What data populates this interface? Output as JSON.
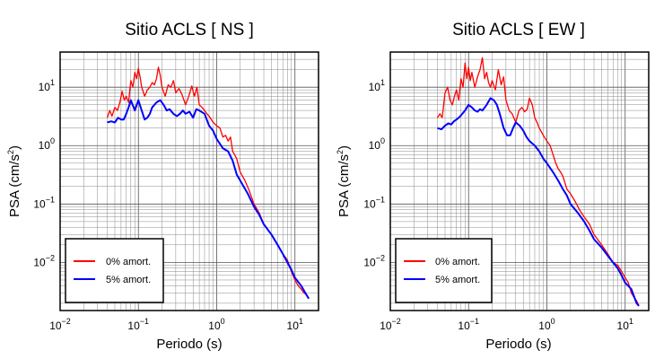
{
  "chart_data": [
    {
      "type": "line",
      "title": "Sitio ACLS [ NS ]",
      "xlabel": "Periodo (s)",
      "ylabel_main": "PSA (cm/s",
      "ylabel_sup": "2",
      "ylabel_tail": ")",
      "xscale": "log",
      "yscale": "log",
      "xlim": [
        0.01,
        20
      ],
      "ylim": [
        0.0015,
        40
      ],
      "grid": true,
      "legend_position": "bottom-left",
      "x_ticks": [
        {
          "base": "10",
          "exp": "−2"
        },
        {
          "base": "10",
          "exp": "−1"
        },
        {
          "base": "10",
          "exp": "0"
        },
        {
          "base": "10",
          "exp": "1"
        }
      ],
      "y_ticks": [
        {
          "base": "10",
          "exp": "−2"
        },
        {
          "base": "10",
          "exp": "−1"
        },
        {
          "base": "10",
          "exp": "0"
        },
        {
          "base": "10",
          "exp": "1"
        }
      ],
      "series": [
        {
          "name": "0% amort.",
          "color": "#ff0000",
          "x": [
            0.04,
            0.043,
            0.046,
            0.05,
            0.054,
            0.058,
            0.062,
            0.066,
            0.07,
            0.075,
            0.08,
            0.085,
            0.09,
            0.095,
            0.1,
            0.105,
            0.11,
            0.12,
            0.13,
            0.14,
            0.15,
            0.16,
            0.17,
            0.18,
            0.19,
            0.2,
            0.22,
            0.24,
            0.26,
            0.28,
            0.3,
            0.33,
            0.36,
            0.4,
            0.44,
            0.48,
            0.52,
            0.56,
            0.6,
            0.65,
            0.7,
            0.75,
            0.8,
            0.9,
            1.0,
            1.1,
            1.2,
            1.3,
            1.4,
            1.5,
            1.6,
            1.8,
            2.0,
            2.3,
            2.6,
            3.0,
            3.5,
            4.0,
            5.0,
            6.0,
            7.0,
            8.0,
            9.0,
            10.0,
            11.0,
            12.0,
            13.0,
            14.0,
            15.0
          ],
          "y": [
            3.0,
            4.0,
            3.2,
            4.5,
            4.0,
            5.5,
            8.5,
            6.0,
            7.0,
            5.5,
            13.0,
            10.0,
            18.0,
            14.0,
            21.0,
            15.0,
            10.0,
            7.0,
            9.0,
            10.0,
            12.0,
            11.0,
            14.0,
            22.0,
            16.0,
            10.0,
            7.0,
            11.0,
            10.0,
            13.0,
            8.0,
            9.5,
            7.5,
            5.0,
            7.0,
            10.5,
            7.0,
            10.0,
            5.0,
            4.5,
            4.0,
            3.5,
            3.2,
            2.5,
            2.2,
            2.0,
            1.4,
            1.5,
            1.2,
            1.4,
            0.8,
            0.6,
            0.35,
            0.25,
            0.17,
            0.1,
            0.07,
            0.045,
            0.03,
            0.02,
            0.014,
            0.011,
            0.007,
            0.005,
            0.004,
            0.0035,
            0.003,
            0.0028,
            0.0024
          ]
        },
        {
          "name": "5% amort.",
          "color": "#0000ff",
          "x": [
            0.04,
            0.045,
            0.05,
            0.055,
            0.06,
            0.065,
            0.07,
            0.075,
            0.08,
            0.09,
            0.1,
            0.11,
            0.12,
            0.13,
            0.14,
            0.15,
            0.17,
            0.19,
            0.21,
            0.23,
            0.25,
            0.28,
            0.31,
            0.34,
            0.37,
            0.4,
            0.45,
            0.5,
            0.55,
            0.6,
            0.7,
            0.8,
            0.9,
            1.0,
            1.2,
            1.4,
            1.6,
            1.8,
            2.0,
            2.5,
            3.0,
            3.5,
            4.0,
            5.0,
            6.0,
            7.0,
            8.0,
            9.0,
            10.0,
            12.0,
            14.0,
            15.0
          ],
          "y": [
            2.5,
            2.6,
            2.5,
            3.0,
            2.8,
            2.8,
            3.5,
            4.5,
            6.0,
            4.0,
            6.0,
            4.0,
            2.8,
            3.0,
            3.5,
            4.5,
            5.5,
            6.0,
            5.0,
            4.0,
            4.2,
            3.5,
            3.2,
            3.5,
            4.0,
            3.5,
            3.8,
            3.0,
            4.2,
            4.0,
            3.5,
            2.2,
            1.8,
            1.3,
            0.9,
            0.8,
            0.55,
            0.32,
            0.25,
            0.15,
            0.09,
            0.065,
            0.045,
            0.03,
            0.02,
            0.014,
            0.01,
            0.0075,
            0.0055,
            0.004,
            0.0028,
            0.0024
          ]
        }
      ]
    },
    {
      "type": "line",
      "title": "Sitio ACLS [ EW ]",
      "xlabel": "Periodo (s)",
      "ylabel_main": "PSA (cm/s",
      "ylabel_sup": "2",
      "ylabel_tail": ")",
      "xscale": "log",
      "yscale": "log",
      "xlim": [
        0.01,
        20
      ],
      "ylim": [
        0.0015,
        40
      ],
      "grid": true,
      "legend_position": "bottom-left",
      "x_ticks": [
        {
          "base": "10",
          "exp": "−2"
        },
        {
          "base": "10",
          "exp": "−1"
        },
        {
          "base": "10",
          "exp": "0"
        },
        {
          "base": "10",
          "exp": "1"
        }
      ],
      "y_ticks": [
        {
          "base": "10",
          "exp": "−2"
        },
        {
          "base": "10",
          "exp": "−1"
        },
        {
          "base": "10",
          "exp": "0"
        },
        {
          "base": "10",
          "exp": "1"
        }
      ],
      "series": [
        {
          "name": "0% amort.",
          "color": "#ff0000",
          "x": [
            0.04,
            0.043,
            0.046,
            0.05,
            0.054,
            0.058,
            0.062,
            0.066,
            0.07,
            0.075,
            0.08,
            0.085,
            0.09,
            0.095,
            0.1,
            0.105,
            0.11,
            0.12,
            0.13,
            0.14,
            0.15,
            0.16,
            0.17,
            0.18,
            0.19,
            0.2,
            0.22,
            0.24,
            0.26,
            0.28,
            0.3,
            0.33,
            0.36,
            0.4,
            0.44,
            0.48,
            0.52,
            0.56,
            0.6,
            0.65,
            0.7,
            0.75,
            0.8,
            0.9,
            1.0,
            1.1,
            1.2,
            1.3,
            1.4,
            1.5,
            1.6,
            1.8,
            2.0,
            2.3,
            2.6,
            3.0,
            3.5,
            4.0,
            5.0,
            6.0,
            7.0,
            8.0,
            9.0,
            10.0,
            11.0,
            12.0,
            13.0,
            14.0,
            15.0
          ],
          "y": [
            3.0,
            3.5,
            3.0,
            8.0,
            10.0,
            6.0,
            5.0,
            7.0,
            9.0,
            6.0,
            14.0,
            10.0,
            26.0,
            14.0,
            22.0,
            13.0,
            18.0,
            10.0,
            15.0,
            20.0,
            32.0,
            14.0,
            18.0,
            12.0,
            10.0,
            13.0,
            9.0,
            20.0,
            11.0,
            15.0,
            6.0,
            4.0,
            3.5,
            2.5,
            4.0,
            4.5,
            3.8,
            4.2,
            6.5,
            5.0,
            3.0,
            2.5,
            2.0,
            1.5,
            1.2,
            1.0,
            0.7,
            0.5,
            0.4,
            0.35,
            0.3,
            0.18,
            0.15,
            0.11,
            0.08,
            0.06,
            0.045,
            0.03,
            0.02,
            0.014,
            0.01,
            0.009,
            0.007,
            0.0055,
            0.0045,
            0.003,
            0.0025,
            0.0022,
            0.0018
          ]
        },
        {
          "name": "5% amort.",
          "color": "#0000ff",
          "x": [
            0.04,
            0.045,
            0.05,
            0.055,
            0.06,
            0.065,
            0.07,
            0.075,
            0.08,
            0.09,
            0.1,
            0.11,
            0.12,
            0.13,
            0.14,
            0.15,
            0.17,
            0.19,
            0.21,
            0.23,
            0.25,
            0.28,
            0.31,
            0.34,
            0.37,
            0.4,
            0.45,
            0.5,
            0.55,
            0.6,
            0.7,
            0.8,
            0.9,
            1.0,
            1.2,
            1.4,
            1.6,
            1.8,
            2.0,
            2.5,
            3.0,
            3.5,
            4.0,
            5.0,
            6.0,
            7.0,
            8.0,
            9.0,
            10.0,
            12.0,
            14.0,
            15.0
          ],
          "y": [
            2.0,
            1.9,
            2.2,
            2.4,
            2.3,
            2.6,
            2.8,
            3.0,
            3.3,
            4.0,
            5.0,
            4.5,
            4.0,
            3.8,
            4.2,
            4.0,
            5.0,
            6.5,
            6.0,
            5.0,
            3.5,
            2.0,
            1.5,
            1.5,
            2.0,
            2.5,
            2.2,
            1.8,
            1.4,
            1.2,
            1.0,
            0.8,
            0.6,
            0.5,
            0.35,
            0.25,
            0.18,
            0.14,
            0.1,
            0.07,
            0.05,
            0.035,
            0.025,
            0.018,
            0.013,
            0.01,
            0.008,
            0.006,
            0.0045,
            0.0035,
            0.002,
            0.0018
          ]
        }
      ]
    }
  ]
}
